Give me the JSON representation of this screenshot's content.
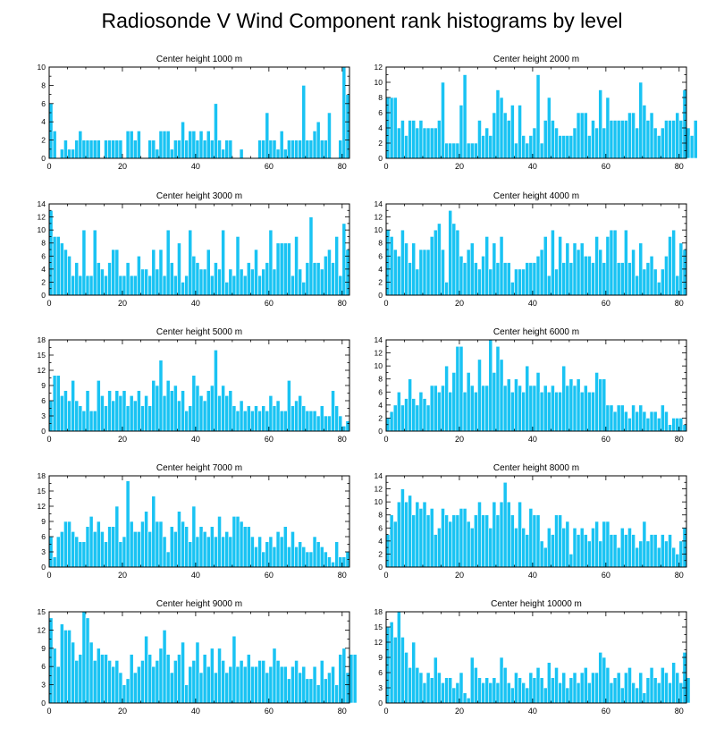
{
  "figure": {
    "title": "Radiosonde V Wind Component rank histograms by level",
    "bar_color": "#19c3f3",
    "bar_edge_color": "#ffffff"
  },
  "chart_data": [
    {
      "type": "bar",
      "title": "Center height 1000 m",
      "xlim": [
        0,
        82
      ],
      "ylim": [
        0,
        10
      ],
      "xticks": [
        0,
        20,
        40,
        60,
        80
      ],
      "yticks": [
        0,
        2,
        4,
        6,
        8,
        10
      ],
      "values": [
        6,
        3,
        0,
        1,
        2,
        1,
        1,
        2,
        3,
        2,
        2,
        2,
        2,
        2,
        0,
        2,
        2,
        2,
        2,
        2,
        0,
        3,
        3,
        2,
        3,
        0,
        0,
        2,
        2,
        1,
        3,
        3,
        3,
        1,
        2,
        2,
        4,
        2,
        3,
        3,
        2,
        3,
        2,
        3,
        2,
        6,
        2,
        1,
        2,
        2,
        0,
        0,
        1,
        0,
        0,
        0,
        0,
        2,
        2,
        5,
        2,
        2,
        1,
        3,
        1,
        2,
        2,
        2,
        2,
        8,
        2,
        2,
        3,
        4,
        2,
        2,
        5,
        0,
        0,
        2,
        10,
        7
      ]
    },
    {
      "type": "bar",
      "title": "Center height 2000 m",
      "xlim": [
        0,
        82
      ],
      "ylim": [
        0,
        12
      ],
      "xticks": [
        0,
        20,
        40,
        60,
        80
      ],
      "yticks": [
        0,
        2,
        4,
        6,
        8,
        10,
        12
      ],
      "values": [
        8,
        8,
        8,
        4,
        5,
        3,
        5,
        5,
        4,
        5,
        4,
        4,
        4,
        4,
        5,
        10,
        2,
        2,
        2,
        2,
        7,
        11,
        2,
        2,
        2,
        5,
        3,
        4,
        3,
        6,
        9,
        8,
        6,
        5,
        7,
        2,
        7,
        3,
        2,
        3,
        4,
        11,
        2,
        5,
        8,
        5,
        4,
        3,
        3,
        3,
        3,
        4,
        6,
        6,
        6,
        3,
        5,
        4,
        9,
        4,
        8,
        5,
        5,
        5,
        5,
        5,
        6,
        6,
        4,
        10,
        7,
        5,
        6,
        4,
        3,
        4,
        5,
        5,
        5,
        6,
        5,
        9,
        4,
        3,
        5
      ]
    },
    {
      "type": "bar",
      "title": "Center height 3000 m",
      "xlim": [
        0,
        82
      ],
      "ylim": [
        0,
        14
      ],
      "xticks": [
        0,
        20,
        40,
        60,
        80
      ],
      "yticks": [
        0,
        2,
        4,
        6,
        8,
        10,
        12,
        14
      ],
      "values": [
        13,
        9,
        9,
        8,
        7,
        6,
        3,
        5,
        3,
        10,
        3,
        3,
        10,
        5,
        4,
        3,
        5,
        7,
        7,
        3,
        3,
        5,
        3,
        3,
        6,
        4,
        4,
        3,
        7,
        4,
        7,
        3,
        10,
        5,
        3,
        8,
        2,
        3,
        10,
        6,
        5,
        4,
        4,
        7,
        3,
        5,
        4,
        10,
        2,
        4,
        3,
        9,
        4,
        3,
        5,
        4,
        7,
        3,
        4,
        5,
        10,
        4,
        8,
        8,
        8,
        8,
        3,
        9,
        4,
        2,
        5,
        12,
        5,
        5,
        4,
        6,
        7,
        5,
        9,
        3,
        11,
        7
      ]
    },
    {
      "type": "bar",
      "title": "Center height 4000 m",
      "xlim": [
        0,
        82
      ],
      "ylim": [
        0,
        14
      ],
      "xticks": [
        0,
        20,
        40,
        60,
        80
      ],
      "yticks": [
        0,
        2,
        4,
        6,
        8,
        10,
        12,
        14
      ],
      "values": [
        10,
        9,
        7,
        6,
        10,
        8,
        5,
        8,
        4,
        7,
        7,
        7,
        9,
        10,
        11,
        7,
        2,
        13,
        11,
        10,
        6,
        5,
        7,
        8,
        5,
        4,
        6,
        9,
        4,
        8,
        5,
        9,
        5,
        5,
        2,
        4,
        4,
        4,
        5,
        5,
        5,
        6,
        7,
        9,
        3,
        10,
        4,
        9,
        5,
        8,
        5,
        8,
        7,
        8,
        6,
        6,
        5,
        9,
        7,
        5,
        9,
        10,
        10,
        5,
        5,
        10,
        5,
        7,
        3,
        8,
        4,
        5,
        6,
        4,
        2,
        4,
        6,
        9,
        10,
        3,
        8,
        7
      ]
    },
    {
      "type": "bar",
      "title": "Center height 5000 m",
      "xlim": [
        0,
        82
      ],
      "ylim": [
        0,
        18
      ],
      "xticks": [
        0,
        20,
        40,
        60,
        80
      ],
      "yticks": [
        0,
        3,
        6,
        9,
        12,
        15,
        18
      ],
      "values": [
        6,
        11,
        11,
        7,
        8,
        6,
        10,
        6,
        5,
        4,
        8,
        4,
        4,
        10,
        7,
        5,
        8,
        6,
        8,
        7,
        8,
        5,
        7,
        6,
        8,
        5,
        7,
        5,
        10,
        9,
        14,
        7,
        10,
        8,
        9,
        6,
        8,
        4,
        5,
        11,
        9,
        7,
        6,
        8,
        9,
        16,
        7,
        9,
        7,
        8,
        5,
        4,
        6,
        4,
        5,
        4,
        5,
        4,
        5,
        4,
        7,
        5,
        6,
        4,
        4,
        10,
        5,
        6,
        7,
        5,
        4,
        4,
        4,
        3,
        5,
        3,
        3,
        8,
        5,
        3,
        1,
        2
      ]
    },
    {
      "type": "bar",
      "title": "Center height 6000 m",
      "xlim": [
        0,
        82
      ],
      "ylim": [
        0,
        14
      ],
      "xticks": [
        0,
        20,
        40,
        60,
        80
      ],
      "yticks": [
        0,
        2,
        4,
        6,
        8,
        10,
        12,
        14
      ],
      "values": [
        2,
        3,
        4,
        6,
        4,
        5,
        8,
        5,
        4,
        6,
        5,
        4,
        7,
        7,
        6,
        7,
        10,
        6,
        9,
        13,
        13,
        6,
        9,
        7,
        6,
        11,
        7,
        7,
        14,
        9,
        13,
        11,
        7,
        8,
        6,
        8,
        7,
        6,
        10,
        7,
        7,
        9,
        6,
        7,
        6,
        7,
        6,
        6,
        10,
        7,
        8,
        7,
        8,
        6,
        7,
        6,
        6,
        9,
        8,
        8,
        4,
        4,
        3,
        4,
        4,
        3,
        2,
        4,
        3,
        4,
        3,
        2,
        3,
        3,
        2,
        4,
        3,
        1,
        2,
        2,
        2,
        1
      ]
    },
    {
      "type": "bar",
      "title": "Center height 7000 m",
      "xlim": [
        0,
        82
      ],
      "ylim": [
        0,
        18
      ],
      "xticks": [
        0,
        20,
        40,
        60,
        80
      ],
      "yticks": [
        0,
        3,
        6,
        9,
        12,
        15,
        18
      ],
      "values": [
        6,
        2,
        6,
        7,
        9,
        9,
        7,
        6,
        5,
        5,
        8,
        10,
        7,
        9,
        7,
        5,
        8,
        8,
        12,
        5,
        6,
        17,
        9,
        7,
        7,
        9,
        11,
        7,
        14,
        9,
        9,
        6,
        3,
        8,
        7,
        11,
        9,
        8,
        5,
        12,
        6,
        8,
        7,
        6,
        8,
        6,
        10,
        6,
        7,
        6,
        10,
        10,
        9,
        8,
        8,
        6,
        4,
        6,
        3,
        5,
        6,
        4,
        7,
        6,
        8,
        4,
        7,
        4,
        5,
        4,
        3,
        3,
        6,
        5,
        4,
        3,
        2,
        1,
        5,
        2,
        2,
        3
      ]
    },
    {
      "type": "bar",
      "title": "Center height 8000 m",
      "xlim": [
        0,
        82
      ],
      "ylim": [
        0,
        14
      ],
      "xticks": [
        0,
        20,
        40,
        60,
        80
      ],
      "yticks": [
        0,
        2,
        4,
        6,
        8,
        10,
        12,
        14
      ],
      "values": [
        5,
        8,
        7,
        10,
        12,
        10,
        11,
        8,
        10,
        9,
        10,
        8,
        9,
        5,
        6,
        9,
        8,
        7,
        8,
        8,
        9,
        9,
        7,
        6,
        8,
        10,
        8,
        8,
        6,
        10,
        8,
        10,
        13,
        10,
        8,
        6,
        10,
        6,
        5,
        9,
        8,
        8,
        4,
        3,
        6,
        5,
        8,
        8,
        6,
        7,
        2,
        6,
        5,
        6,
        5,
        4,
        6,
        7,
        4,
        7,
        7,
        5,
        5,
        3,
        6,
        5,
        6,
        5,
        3,
        4,
        7,
        4,
        5,
        5,
        3,
        5,
        4,
        5,
        3,
        2,
        4,
        6
      ]
    },
    {
      "type": "bar",
      "title": "Center height 9000 m",
      "xlim": [
        0,
        82
      ],
      "ylim": [
        0,
        15
      ],
      "xticks": [
        0,
        20,
        40,
        60,
        80
      ],
      "yticks": [
        0,
        3,
        6,
        9,
        12,
        15
      ],
      "values": [
        14,
        9,
        6,
        13,
        12,
        12,
        10,
        7,
        8,
        15,
        14,
        10,
        7,
        9,
        8,
        8,
        7,
        6,
        7,
        5,
        3,
        4,
        8,
        5,
        6,
        7,
        11,
        8,
        6,
        7,
        9,
        12,
        8,
        5,
        7,
        8,
        10,
        3,
        6,
        7,
        10,
        5,
        8,
        6,
        9,
        5,
        9,
        7,
        5,
        6,
        11,
        6,
        7,
        6,
        8,
        6,
        6,
        7,
        7,
        5,
        6,
        9,
        7,
        6,
        6,
        4,
        6,
        7,
        5,
        6,
        4,
        4,
        6,
        3,
        7,
        4,
        5,
        6,
        3,
        8,
        9,
        5,
        8,
        8
      ]
    },
    {
      "type": "bar",
      "title": "Center height 10000 m",
      "xlim": [
        0,
        82
      ],
      "ylim": [
        0,
        18
      ],
      "xticks": [
        0,
        20,
        40,
        60,
        80
      ],
      "yticks": [
        0,
        3,
        6,
        9,
        12,
        15,
        18
      ],
      "values": [
        15,
        16,
        13,
        18,
        13,
        10,
        7,
        12,
        7,
        6,
        4,
        6,
        5,
        9,
        6,
        4,
        5,
        5,
        3,
        4,
        6,
        2,
        1,
        9,
        7,
        5,
        4,
        5,
        4,
        5,
        4,
        9,
        7,
        4,
        3,
        6,
        5,
        4,
        3,
        6,
        5,
        7,
        5,
        3,
        8,
        5,
        7,
        4,
        6,
        3,
        5,
        6,
        4,
        6,
        7,
        4,
        6,
        6,
        10,
        9,
        7,
        4,
        5,
        6,
        3,
        6,
        7,
        4,
        3,
        6,
        2,
        5,
        7,
        5,
        4,
        7,
        6,
        4,
        8,
        6,
        4,
        10,
        5
      ]
    }
  ]
}
